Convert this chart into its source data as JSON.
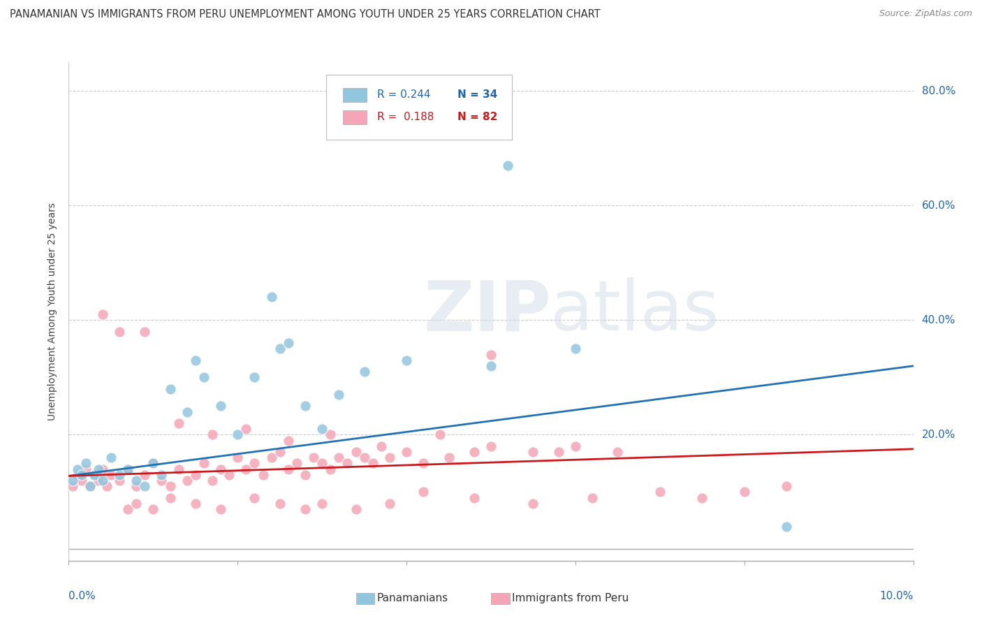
{
  "title": "PANAMANIAN VS IMMIGRANTS FROM PERU UNEMPLOYMENT AMONG YOUTH UNDER 25 YEARS CORRELATION CHART",
  "source": "Source: ZipAtlas.com",
  "ylabel": "Unemployment Among Youth under 25 years",
  "xlim": [
    0.0,
    0.1
  ],
  "ylim": [
    -0.02,
    0.85
  ],
  "yticks": [
    0.0,
    0.2,
    0.4,
    0.6,
    0.8
  ],
  "ytick_labels": [
    "",
    "20.0%",
    "40.0%",
    "60.0%",
    "80.0%"
  ],
  "legend_R1": "R = 0.244",
  "legend_N1": "N = 34",
  "legend_R2": "R = 0.188",
  "legend_N2": "N = 82",
  "color_blue": "#92c5de",
  "color_pink": "#f4a6b8",
  "color_blue_line": "#2171b5",
  "color_pink_line": "#cb181d",
  "color_text_blue": "#2166ac",
  "color_text_pink": "#cb181d",
  "background_color": "#ffffff",
  "watermark_zip": "ZIP",
  "watermark_atlas": "atlas",
  "blue_trend_x": [
    0.0,
    0.1
  ],
  "blue_trend_y": [
    0.128,
    0.32
  ],
  "pink_trend_x": [
    0.0,
    0.1
  ],
  "pink_trend_y": [
    0.128,
    0.175
  ],
  "blue_pts_x": [
    0.0005,
    0.001,
    0.0015,
    0.002,
    0.0025,
    0.003,
    0.0035,
    0.004,
    0.005,
    0.006,
    0.007,
    0.008,
    0.009,
    0.01,
    0.011,
    0.012,
    0.014,
    0.016,
    0.018,
    0.02,
    0.015,
    0.022,
    0.025,
    0.028,
    0.03,
    0.032,
    0.035,
    0.04,
    0.05,
    0.052,
    0.024,
    0.026,
    0.085,
    0.06
  ],
  "blue_pts_y": [
    0.12,
    0.14,
    0.13,
    0.15,
    0.11,
    0.13,
    0.14,
    0.12,
    0.16,
    0.13,
    0.14,
    0.12,
    0.11,
    0.15,
    0.13,
    0.28,
    0.24,
    0.3,
    0.25,
    0.2,
    0.33,
    0.3,
    0.35,
    0.25,
    0.21,
    0.27,
    0.31,
    0.33,
    0.32,
    0.67,
    0.44,
    0.36,
    0.04,
    0.35
  ],
  "pink_pts_x": [
    0.0005,
    0.001,
    0.0015,
    0.002,
    0.0025,
    0.003,
    0.0035,
    0.004,
    0.0045,
    0.005,
    0.006,
    0.007,
    0.008,
    0.009,
    0.01,
    0.011,
    0.012,
    0.013,
    0.014,
    0.015,
    0.016,
    0.017,
    0.018,
    0.019,
    0.02,
    0.021,
    0.022,
    0.023,
    0.024,
    0.025,
    0.026,
    0.027,
    0.028,
    0.029,
    0.03,
    0.031,
    0.032,
    0.033,
    0.034,
    0.035,
    0.036,
    0.038,
    0.04,
    0.042,
    0.045,
    0.048,
    0.05,
    0.055,
    0.06,
    0.065,
    0.007,
    0.008,
    0.01,
    0.012,
    0.015,
    0.018,
    0.022,
    0.025,
    0.028,
    0.03,
    0.034,
    0.038,
    0.042,
    0.048,
    0.055,
    0.062,
    0.07,
    0.075,
    0.08,
    0.085,
    0.004,
    0.006,
    0.009,
    0.013,
    0.017,
    0.021,
    0.026,
    0.031,
    0.037,
    0.044,
    0.05,
    0.058
  ],
  "pink_pts_y": [
    0.11,
    0.13,
    0.12,
    0.14,
    0.11,
    0.13,
    0.12,
    0.14,
    0.11,
    0.13,
    0.12,
    0.14,
    0.11,
    0.13,
    0.15,
    0.12,
    0.11,
    0.14,
    0.12,
    0.13,
    0.15,
    0.12,
    0.14,
    0.13,
    0.16,
    0.14,
    0.15,
    0.13,
    0.16,
    0.17,
    0.14,
    0.15,
    0.13,
    0.16,
    0.15,
    0.14,
    0.16,
    0.15,
    0.17,
    0.16,
    0.15,
    0.16,
    0.17,
    0.15,
    0.16,
    0.17,
    0.18,
    0.17,
    0.18,
    0.17,
    0.07,
    0.08,
    0.07,
    0.09,
    0.08,
    0.07,
    0.09,
    0.08,
    0.07,
    0.08,
    0.07,
    0.08,
    0.1,
    0.09,
    0.08,
    0.09,
    0.1,
    0.09,
    0.1,
    0.11,
    0.41,
    0.38,
    0.38,
    0.22,
    0.2,
    0.21,
    0.19,
    0.2,
    0.18,
    0.2,
    0.34,
    0.17
  ]
}
